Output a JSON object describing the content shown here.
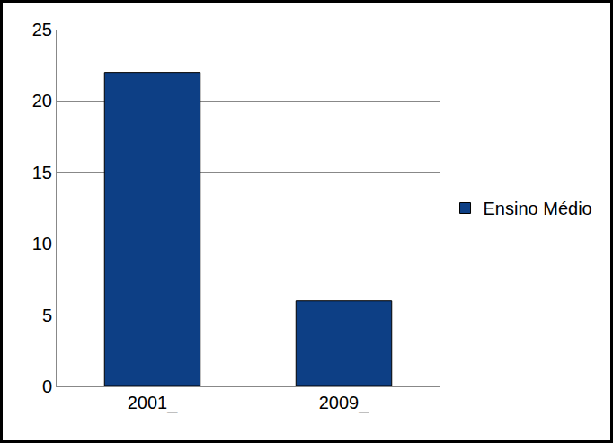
{
  "chart_data": {
    "type": "bar",
    "categories": [
      "2001_",
      "2009_"
    ],
    "series": [
      {
        "name": "Ensino Médio",
        "color": "#0d3f85",
        "values": [
          22,
          6
        ]
      }
    ],
    "ylim": [
      0,
      25
    ],
    "yticks": [
      0,
      5,
      10,
      15,
      20,
      25
    ],
    "grid": true,
    "legend": "right"
  }
}
